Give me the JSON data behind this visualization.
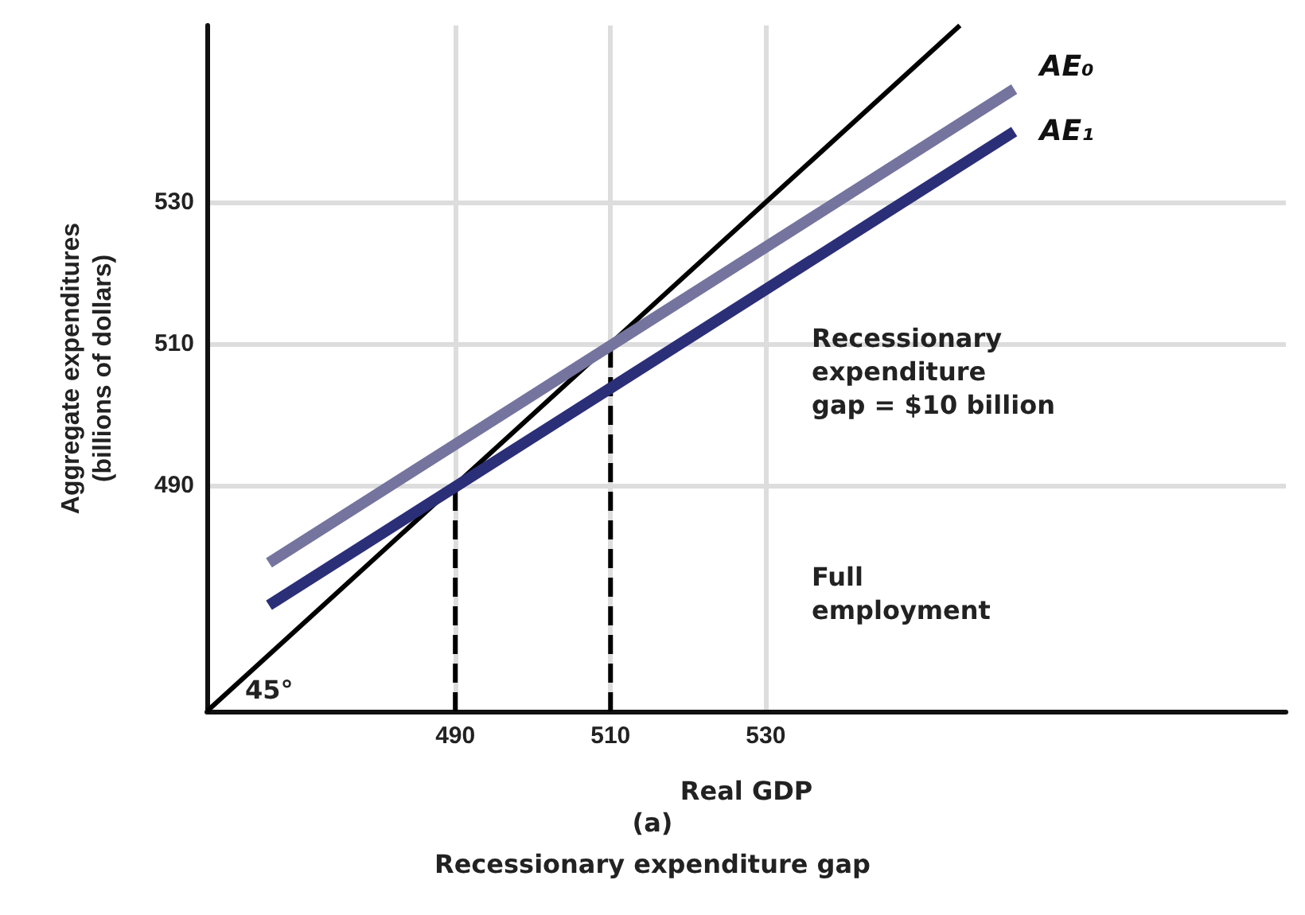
{
  "chart_data": {
    "type": "line",
    "title": "Recessionary expenditure gap",
    "subtitle": "(a)",
    "xlabel": "Real GDP",
    "ylabel": "Aggregate expenditures\n(billions of dollars)",
    "xlim": [
      458,
      597
    ],
    "ylim": [
      458,
      555
    ],
    "xticks": [
      490,
      510,
      530
    ],
    "yticks": [
      490,
      510,
      530
    ],
    "grid": true,
    "legend": false,
    "marker": "none",
    "series": [
      {
        "color": "#000000",
        "x": [
          458,
          555
        ],
        "values": [
          458,
          555
        ]
      },
      {
        "name": "AE₀",
        "color": "#74749e",
        "x": [
          466,
          562
        ],
        "values": [
          479,
          546
        ]
      },
      {
        "name": "AE₁",
        "color": "#2b2f78",
        "x": [
          466,
          562
        ],
        "values": [
          473,
          540
        ]
      },
      {
        "color": "#000000",
        "line_style": "dashed",
        "x": [
          490,
          490
        ],
        "values": [
          458,
          490
        ]
      },
      {
        "color": "#000000",
        "line_style": "dashed",
        "x": [
          510,
          510
        ],
        "values": [
          458,
          510
        ]
      }
    ],
    "annotations": [
      "45°",
      "Recessionary\nexpenditure\ngap = $10 billion",
      "Full\nemployment"
    ]
  }
}
